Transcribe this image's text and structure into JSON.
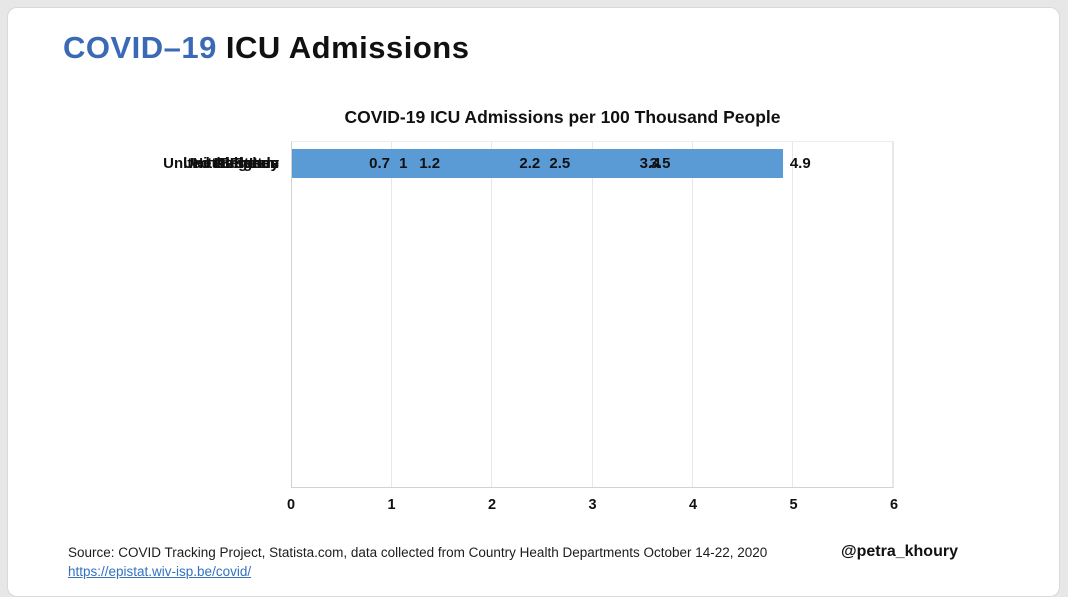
{
  "header": {
    "title_blue": "COVID–19",
    "title_black": "ICU Admissions",
    "title_blue_color": "#3a69b5"
  },
  "chart_data": {
    "type": "bar",
    "orientation": "horizontal",
    "title": "COVID-19 ICU Admissions per 100 Thousand People",
    "categories": [
      "Belgium",
      "Lebanon",
      "France",
      "United States",
      "Netherlands",
      "Italy",
      "United Kingdom",
      "Germany"
    ],
    "values": [
      4.9,
      3.5,
      3.4,
      2.5,
      2.2,
      1.2,
      1,
      0.7
    ],
    "value_labels": [
      "4.9",
      "3.5",
      "3.4",
      "2.5",
      "2.2",
      "1.2",
      "1",
      "0.7"
    ],
    "xlim": [
      0,
      6
    ],
    "xticks": [
      0,
      1,
      2,
      3,
      4,
      5,
      6
    ],
    "grid": true,
    "legend": "none",
    "bar_color": "#5b9bd5",
    "gridline_color": "#e8e8e8"
  },
  "footer": {
    "source": "Source: COVID Tracking Project, Statista.com, data collected from Country Health Departments October 14-22, 2020",
    "link": "https://epistat.wiv-isp.be/covid/",
    "handle": "@petra_khoury"
  }
}
